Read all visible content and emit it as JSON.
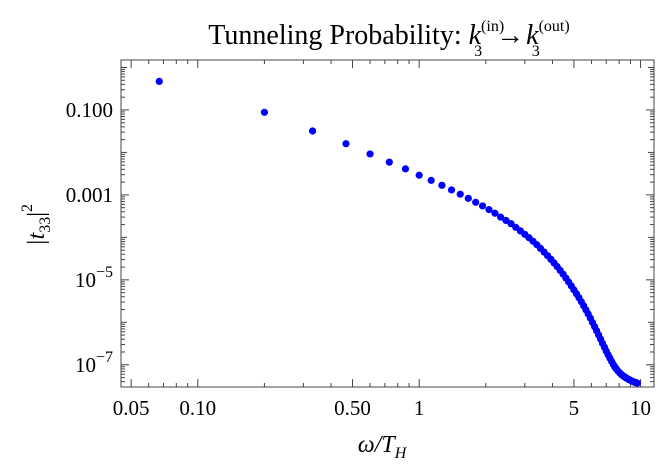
{
  "chart_data": {
    "type": "scatter",
    "title": {
      "prefix": "Tunneling Probability: ",
      "k1": "k",
      "k1_sub": "3",
      "k1_sup": "(in)",
      "arrow": "→",
      "k2": "k",
      "k2_sub": "3",
      "k2_sup": "(out)"
    },
    "xlabel": {
      "main": "ω/T",
      "sub": "H"
    },
    "ylabel": {
      "main": "|t",
      "sub": "33",
      "close": "|",
      "sup": "2"
    },
    "x_scale": "log",
    "y_scale": "log",
    "xlim": [
      0.045,
      11.5
    ],
    "ylim": [
      3e-08,
      1.5
    ],
    "x_ticks": [
      {
        "value": 0.05,
        "label": "0.05"
      },
      {
        "value": 0.1,
        "label": "0.10"
      },
      {
        "value": 0.5,
        "label": "0.50"
      },
      {
        "value": 1,
        "label": "1"
      },
      {
        "value": 5,
        "label": "5"
      },
      {
        "value": 10,
        "label": "10"
      }
    ],
    "y_ticks": [
      {
        "value": 0.1,
        "label": "0.100"
      },
      {
        "value": 0.001,
        "label": "0.001"
      },
      {
        "value": 1e-05,
        "base": "10",
        "exp": "−5"
      },
      {
        "value": 1e-07,
        "base": "10",
        "exp": "−7"
      }
    ],
    "grid": false,
    "marker_color": "#0000ff",
    "series": [
      {
        "x": [
          0.067,
          0.2,
          0.33,
          0.467,
          0.6,
          0.733,
          0.867,
          1.0,
          1.133,
          1.267,
          1.4,
          1.533,
          1.667,
          1.8,
          1.933,
          2.067,
          2.2,
          2.333,
          2.467,
          2.6,
          2.733,
          2.867,
          3.0,
          3.133,
          3.267,
          3.4,
          3.533,
          3.667,
          3.8,
          3.933,
          4.067,
          4.2,
          4.333,
          4.467,
          4.6,
          4.733,
          4.867,
          5.0,
          5.133,
          5.267,
          5.4,
          5.533,
          5.667,
          5.8,
          5.933,
          6.067,
          6.2,
          6.333,
          6.467,
          6.6,
          6.733,
          6.867,
          7.0,
          7.133,
          7.267,
          7.4,
          7.533,
          7.667,
          7.8,
          7.933,
          8.067,
          8.2,
          8.333,
          8.467,
          8.6,
          8.733,
          8.867,
          9.0,
          9.133,
          9.267,
          9.4,
          9.533,
          9.667
        ],
        "y": [
          0.47,
          0.088,
          0.032,
          0.016,
          0.0092,
          0.0059,
          0.0041,
          0.0029,
          0.0022,
          0.00168,
          0.00131,
          0.00104,
          0.00083,
          0.00067,
          0.00055,
          0.00045,
          0.00037,
          0.0003,
          0.00025,
          0.00021,
          0.000172,
          0.000142,
          0.000118,
          9.8e-05,
          8.1e-05,
          6.7e-05,
          5.5e-05,
          4.5e-05,
          3.7e-05,
          3.05e-05,
          2.5e-05,
          2.05e-05,
          1.67e-05,
          1.36e-05,
          1.1e-05,
          8.9e-06,
          7.2e-06,
          5.8e-06,
          4.7e-06,
          3.8e-06,
          3.05e-06,
          2.45e-06,
          1.96e-06,
          1.57e-06,
          1.25e-06,
          9.9e-07,
          7.9e-07,
          6.3e-07,
          5e-07,
          4e-07,
          3.2e-07,
          2.6e-07,
          2.1e-07,
          1.72e-07,
          1.43e-07,
          1.2e-07,
          1.02e-07,
          8.8e-08,
          7.8e-08,
          7e-08,
          6.4e-08,
          5.9e-08,
          5.5e-08,
          5.2e-08,
          4.9e-08,
          4.7e-08,
          4.5e-08,
          4.3e-08,
          4.15e-08,
          4e-08,
          3.9e-08,
          3.8e-08,
          3.7e-08
        ]
      }
    ]
  }
}
